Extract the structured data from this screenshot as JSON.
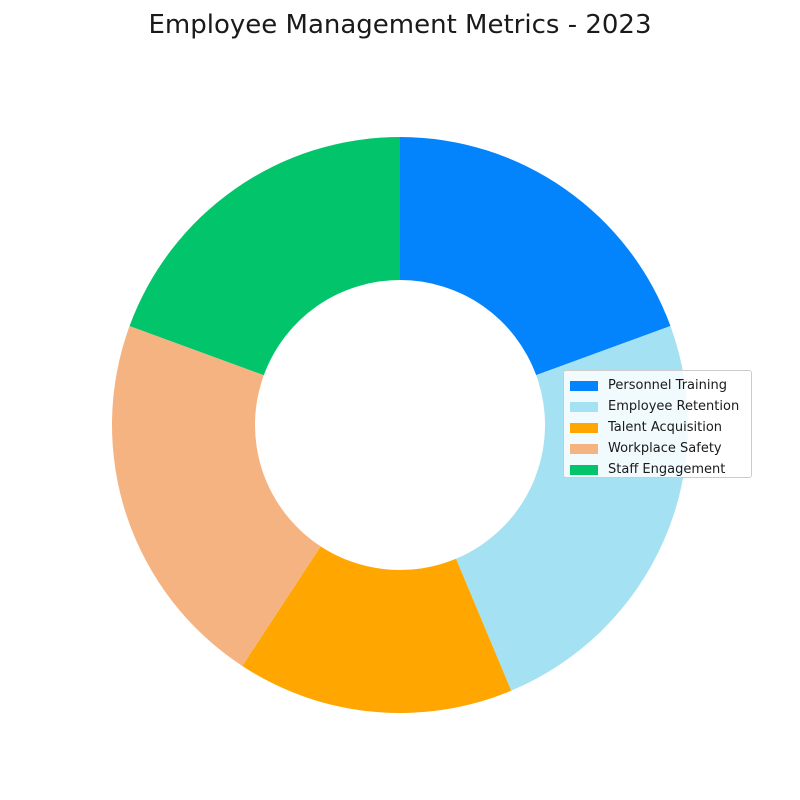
{
  "chart_data": {
    "type": "pie",
    "title": "Employee Management Metrics - 2023",
    "categories": [
      "Personnel Training",
      "Employee Retention",
      "Talent Acquisition",
      "Workplace Safety",
      "Staff Engagement"
    ],
    "values": [
      20,
      25,
      16,
      22,
      20
    ],
    "colors": [
      "#0384fc",
      "#a4e1f3",
      "#ffa600",
      "#f5b381",
      "#02c56b"
    ],
    "donut": true,
    "start_angle": "12 o'clock",
    "direction": "clockwise",
    "legend": "right"
  }
}
